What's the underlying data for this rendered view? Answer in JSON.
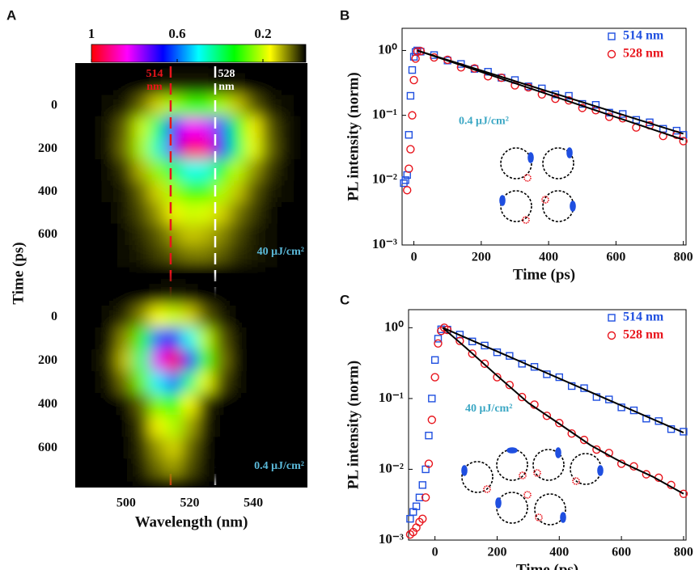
{
  "chart_data": [
    {
      "type": "heatmap",
      "panel_label": "A",
      "ylabel": "Time (ps)",
      "x": [
        490,
        495,
        500,
        505,
        510,
        515,
        520,
        525,
        530,
        535,
        540,
        545,
        550
      ],
      "y": [
        -100,
        0,
        100,
        200,
        300,
        400,
        500,
        600,
        700
      ],
      "z": [
        [
          0,
          0,
          0,
          0,
          0.01,
          0.02,
          0.02,
          0.02,
          0.01,
          0.01,
          0,
          0,
          0
        ],
        [
          0,
          0.01,
          0.02,
          0.07,
          0.14,
          0.23,
          0.29,
          0.29,
          0.22,
          0.13,
          0.06,
          0.02,
          0.01
        ],
        [
          0,
          0.02,
          0.07,
          0.2,
          0.41,
          0.66,
          0.83,
          0.81,
          0.61,
          0.36,
          0.16,
          0.06,
          0.02
        ],
        [
          0,
          0.02,
          0.08,
          0.22,
          0.46,
          0.74,
          0.93,
          0.9,
          0.68,
          0.4,
          0.18,
          0.07,
          0.02
        ],
        [
          0,
          0.01,
          0.04,
          0.12,
          0.24,
          0.39,
          0.49,
          0.48,
          0.36,
          0.21,
          0.1,
          0.04,
          0.01
        ],
        [
          0,
          0.01,
          0.02,
          0.07,
          0.14,
          0.23,
          0.29,
          0.29,
          0.22,
          0.13,
          0.06,
          0.02,
          0.01
        ],
        [
          0,
          0,
          0.02,
          0.05,
          0.1,
          0.16,
          0.2,
          0.19,
          0.14,
          0.08,
          0.04,
          0.01,
          0
        ],
        [
          0,
          0,
          0.01,
          0.03,
          0.06,
          0.1,
          0.13,
          0.12,
          0.09,
          0.05,
          0.02,
          0.01,
          0
        ],
        [
          0,
          0,
          0.01,
          0.02,
          0.04,
          0.06,
          0.08,
          0.08,
          0.06,
          0.03,
          0.02,
          0.01,
          0
        ]
      ],
      "xlim": [
        484,
        557
      ],
      "ylim": [
        -200,
        780
      ],
      "yticks": [
        0,
        200,
        400,
        600
      ],
      "clim": [
        1,
        0
      ],
      "cticks": [
        1,
        0.6,
        0.2
      ],
      "colormap": [
        "#000000",
        "#ffff00",
        "#00ff00",
        "#00ffff",
        "#0000ff",
        "#ff00ff",
        "#ff0000"
      ],
      "vlines": [
        {
          "value": 514,
          "label": [
            "514",
            "nm"
          ],
          "color": "#e8141c"
        },
        {
          "value": 528,
          "label": [
            "528",
            "nm"
          ],
          "color": "#ffffff"
        }
      ],
      "annotation": "40 μJ/cm²",
      "annotation_color": "#5ab8d8"
    },
    {
      "type": "heatmap",
      "xlabel": "Wavelength (nm)",
      "x": [
        490,
        495,
        500,
        505,
        510,
        515,
        520,
        525,
        530,
        535,
        540,
        545,
        550
      ],
      "y": [
        -100,
        0,
        100,
        200,
        300,
        400,
        500,
        600,
        700
      ],
      "z": [
        [
          0,
          0,
          0,
          0,
          0.01,
          0.02,
          0.01,
          0,
          0,
          0,
          0,
          0,
          0
        ],
        [
          0,
          0.01,
          0.03,
          0.09,
          0.17,
          0.2,
          0.14,
          0.06,
          0.02,
          0,
          0,
          0,
          0
        ],
        [
          0,
          0.02,
          0.1,
          0.31,
          0.6,
          0.69,
          0.49,
          0.21,
          0.06,
          0.01,
          0,
          0,
          0
        ],
        [
          0,
          0.03,
          0.13,
          0.42,
          0.81,
          0.94,
          0.67,
          0.29,
          0.08,
          0.01,
          0,
          0,
          0
        ],
        [
          0,
          0.02,
          0.08,
          0.26,
          0.51,
          0.59,
          0.42,
          0.18,
          0.05,
          0.01,
          0,
          0,
          0
        ],
        [
          0,
          0,
          0.01,
          0.07,
          0.25,
          0.34,
          0.17,
          0.03,
          0,
          0,
          0,
          0,
          0
        ],
        [
          0,
          0,
          0,
          0.04,
          0.16,
          0.22,
          0.11,
          0.02,
          0,
          0,
          0,
          0,
          0
        ],
        [
          0,
          0,
          0,
          0.03,
          0.1,
          0.14,
          0.07,
          0.01,
          0,
          0,
          0,
          0,
          0
        ],
        [
          0,
          0,
          0,
          0.02,
          0.07,
          0.1,
          0.05,
          0.01,
          0,
          0,
          0,
          0,
          0
        ]
      ],
      "xlim": [
        484,
        557
      ],
      "ylim": [
        -200,
        780
      ],
      "xticks": [
        500,
        520,
        540
      ],
      "yticks": [
        0,
        200,
        400,
        600
      ],
      "annotation": "0.4 μJ/cm²",
      "annotation_color": "#5ab8d8"
    },
    {
      "type": "scatter",
      "panel_label": "B",
      "xlabel": "Time (ps)",
      "ylabel": "PL intensity (norm)",
      "log_y": true,
      "legend": "upper right",
      "xlim": [
        -35,
        808
      ],
      "ylim": [
        0.001,
        2.2
      ],
      "xticks": [
        0,
        200,
        400,
        600,
        800
      ],
      "yticks": [
        {
          "value": 1,
          "label": "10⁰"
        },
        {
          "value": 0.1,
          "label": "10⁻¹"
        },
        {
          "value": 0.01,
          "label": "10⁻²"
        },
        {
          "value": 0.001,
          "label": "10⁻³"
        }
      ],
      "annotation": "0.4 μJ/cm²",
      "annotation_color": "#3ba7c4",
      "series": [
        {
          "name": "514 nm",
          "color": "#1f4fe0",
          "marker": "square",
          "x": [
            -30,
            -25,
            -20,
            -15,
            -10,
            -5,
            0,
            5,
            10,
            20,
            60,
            100,
            140,
            180,
            220,
            260,
            300,
            340,
            380,
            420,
            460,
            500,
            540,
            580,
            620,
            660,
            700,
            740,
            780,
            800
          ],
          "values": [
            0.009,
            0.01,
            0.012,
            0.05,
            0.2,
            0.5,
            0.8,
            0.95,
            1.0,
            0.96,
            0.85,
            0.7,
            0.62,
            0.52,
            0.47,
            0.38,
            0.35,
            0.28,
            0.26,
            0.21,
            0.2,
            0.15,
            0.145,
            0.11,
            0.105,
            0.085,
            0.078,
            0.062,
            0.058,
            0.05
          ]
        },
        {
          "name": "528 nm",
          "color": "#e8141c",
          "marker": "circle",
          "x": [
            -20,
            -15,
            -10,
            -5,
            0,
            5,
            10,
            20,
            60,
            100,
            140,
            180,
            220,
            260,
            300,
            340,
            380,
            420,
            460,
            500,
            540,
            580,
            620,
            660,
            700,
            740,
            780,
            800
          ],
          "values": [
            0.007,
            0.015,
            0.03,
            0.1,
            0.35,
            0.75,
            0.97,
            0.98,
            0.78,
            0.72,
            0.55,
            0.53,
            0.4,
            0.38,
            0.29,
            0.27,
            0.21,
            0.18,
            0.17,
            0.13,
            0.12,
            0.095,
            0.09,
            0.065,
            0.07,
            0.048,
            0.05,
            0.04
          ]
        },
        {
          "color": "#000000",
          "x": [
            10,
            800
          ],
          "values": [
            1,
            0.052
          ]
        },
        {
          "color": "#000000",
          "x": [
            10,
            800
          ],
          "values": [
            1,
            0.042
          ]
        }
      ]
    },
    {
      "type": "scatter",
      "panel_label": "C",
      "xlabel": "Time (ps)",
      "ylabel": "PL intensity (norm)",
      "log_y": true,
      "legend": "upper right",
      "xlim": [
        -85,
        808
      ],
      "ylim": [
        0.001,
        1.8
      ],
      "xticks": [
        0,
        200,
        400,
        600,
        800
      ],
      "yticks": [
        {
          "value": 1,
          "label": "10⁰"
        },
        {
          "value": 0.1,
          "label": "10⁻¹"
        },
        {
          "value": 0.01,
          "label": "10⁻²"
        },
        {
          "value": 0.001,
          "label": "10⁻³"
        }
      ],
      "annotation": "40 μJ/cm²",
      "annotation_color": "#3ba7c4",
      "series": [
        {
          "name": "514 nm",
          "color": "#1f4fe0",
          "marker": "square",
          "x": [
            -80,
            -70,
            -60,
            -50,
            -40,
            -30,
            -20,
            -10,
            0,
            10,
            20,
            40,
            80,
            120,
            160,
            200,
            240,
            280,
            320,
            360,
            400,
            440,
            480,
            520,
            560,
            600,
            640,
            680,
            720,
            760,
            800
          ],
          "values": [
            0.002,
            0.0025,
            0.003,
            0.004,
            0.006,
            0.01,
            0.03,
            0.1,
            0.35,
            0.7,
            0.95,
            0.94,
            0.8,
            0.64,
            0.56,
            0.45,
            0.4,
            0.31,
            0.28,
            0.22,
            0.2,
            0.15,
            0.14,
            0.105,
            0.097,
            0.075,
            0.068,
            0.052,
            0.048,
            0.037,
            0.034
          ]
        },
        {
          "name": "528 nm",
          "color": "#e8141c",
          "marker": "circle",
          "x": [
            -80,
            -70,
            -60,
            -50,
            -40,
            -30,
            -20,
            -10,
            0,
            10,
            20,
            30,
            40,
            80,
            120,
            160,
            200,
            240,
            280,
            320,
            360,
            400,
            440,
            480,
            520,
            560,
            600,
            640,
            680,
            720,
            760,
            800
          ],
          "values": [
            0.0012,
            0.0013,
            0.0015,
            0.0018,
            0.002,
            0.004,
            0.012,
            0.05,
            0.2,
            0.6,
            0.9,
            1.0,
            0.93,
            0.65,
            0.43,
            0.31,
            0.2,
            0.155,
            0.105,
            0.082,
            0.057,
            0.045,
            0.032,
            0.026,
            0.019,
            0.017,
            0.012,
            0.011,
            0.0085,
            0.0076,
            0.006,
            0.0045
          ]
        },
        {
          "color": "#000000",
          "x": [
            25,
            800
          ],
          "values": [
            1,
            0.033
          ]
        },
        {
          "color": "#000000",
          "x": [
            25,
            100,
            200,
            300,
            400,
            500,
            600,
            700,
            800
          ],
          "values": [
            1,
            0.52,
            0.21,
            0.087,
            0.044,
            0.022,
            0.0126,
            0.0079,
            0.0045
          ]
        }
      ]
    }
  ]
}
